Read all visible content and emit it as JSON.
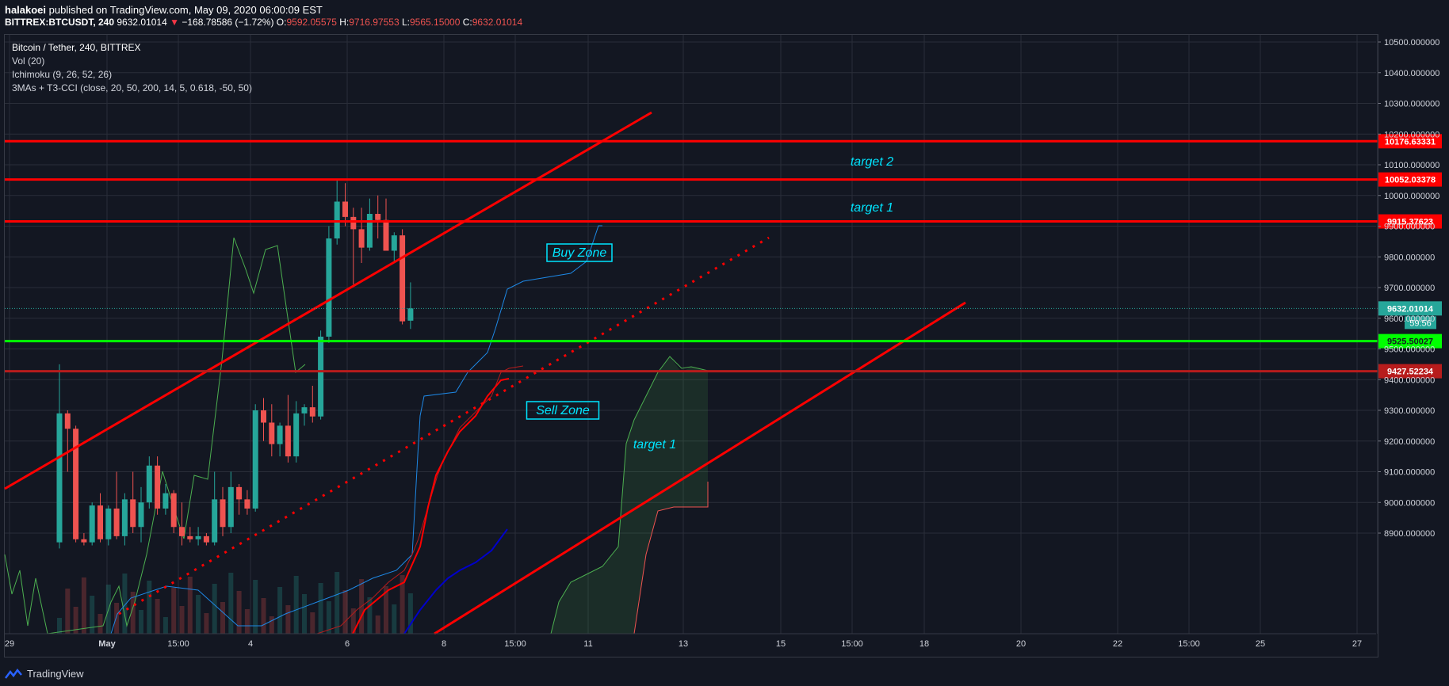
{
  "header": {
    "author": "halakoei",
    "published": "published on TradingView.com, May 09, 2020 06:00:09 EST",
    "symbol": "BITTREX:BTCUSDT, 240",
    "last": "9632.01014",
    "change_arrow": "▼",
    "change": "−168.78586 (−1.72%)",
    "o_label": "O:",
    "o_value": "9592.05575",
    "h_label": "H:",
    "h_value": "9716.97553",
    "l_label": "L:",
    "l_value": "9565.15000",
    "c_label": "C:",
    "c_value": "9632.01014"
  },
  "legend": {
    "title": "Bitcoin / Tether, 240, BITTREX",
    "vol": "Vol (20)",
    "ichimoku": "Ichimoku (9, 26, 52, 26)",
    "mas": "3MAs + T3-CCI (close, 20, 50, 200, 14, 5, 0.618, -50, 50)"
  },
  "footer": {
    "brand": "TradingView"
  },
  "colors": {
    "background": "#131722",
    "up": "#26a69a",
    "down": "#ef5350",
    "hline_red": "#ff0000",
    "hline_green": "#00ff00",
    "annotation": "#00e5ff"
  },
  "chart_data": {
    "type": "candlestick",
    "ylim": [
      8865,
      10560
    ],
    "y_ticks": [
      "10500.000000",
      "10400.000000",
      "10300.000000",
      "10200.000000",
      "10100.000000",
      "10000.000000",
      "9900.000000",
      "9800.000000",
      "9700.000000",
      "9600.000000",
      "9500.000000",
      "9400.000000",
      "9300.000000",
      "9200.000000",
      "9100.000000",
      "9000.000000",
      "8900.000000"
    ],
    "x_ticks": [
      "29",
      "May",
      "15:00",
      "4",
      "6",
      "8",
      "15:00",
      "11",
      "13",
      "15",
      "15:00",
      "18",
      "20",
      "22",
      "15:00",
      "25",
      "27"
    ],
    "candles": [
      {
        "o": 8870,
        "h": 9450,
        "l": 8850,
        "c": 9290
      },
      {
        "o": 9290,
        "h": 9300,
        "l": 9100,
        "c": 9240
      },
      {
        "o": 9240,
        "h": 9250,
        "l": 8870,
        "c": 8880
      },
      {
        "o": 8880,
        "h": 8900,
        "l": 8860,
        "c": 8870
      },
      {
        "o": 8870,
        "h": 9000,
        "l": 8860,
        "c": 8990
      },
      {
        "o": 8990,
        "h": 9030,
        "l": 8870,
        "c": 8880
      },
      {
        "o": 8880,
        "h": 8990,
        "l": 8860,
        "c": 8980
      },
      {
        "o": 8980,
        "h": 9100,
        "l": 8880,
        "c": 8890
      },
      {
        "o": 8890,
        "h": 9030,
        "l": 8860,
        "c": 9010
      },
      {
        "o": 9010,
        "h": 9100,
        "l": 8900,
        "c": 8920
      },
      {
        "o": 8920,
        "h": 9050,
        "l": 8870,
        "c": 9000
      },
      {
        "o": 9000,
        "h": 9150,
        "l": 8980,
        "c": 9120
      },
      {
        "o": 9120,
        "h": 9150,
        "l": 8960,
        "c": 8980
      },
      {
        "o": 8980,
        "h": 9060,
        "l": 8960,
        "c": 9030
      },
      {
        "o": 9030,
        "h": 9040,
        "l": 8900,
        "c": 8920
      },
      {
        "o": 8920,
        "h": 9000,
        "l": 8860,
        "c": 8890
      },
      {
        "o": 8890,
        "h": 8920,
        "l": 8870,
        "c": 8880
      },
      {
        "o": 8880,
        "h": 8920,
        "l": 8860,
        "c": 8890
      },
      {
        "o": 8890,
        "h": 8900,
        "l": 8860,
        "c": 8870
      },
      {
        "o": 8870,
        "h": 9100,
        "l": 8860,
        "c": 9010
      },
      {
        "o": 9010,
        "h": 9050,
        "l": 8890,
        "c": 8920
      },
      {
        "o": 8920,
        "h": 9100,
        "l": 8900,
        "c": 9050
      },
      {
        "o": 9050,
        "h": 9060,
        "l": 8960,
        "c": 9010
      },
      {
        "o": 9010,
        "h": 9040,
        "l": 8960,
        "c": 8980
      },
      {
        "o": 8980,
        "h": 9320,
        "l": 8970,
        "c": 9300
      },
      {
        "o": 9300,
        "h": 9340,
        "l": 9200,
        "c": 9260
      },
      {
        "o": 9260,
        "h": 9320,
        "l": 9150,
        "c": 9190
      },
      {
        "o": 9190,
        "h": 9260,
        "l": 9150,
        "c": 9250
      },
      {
        "o": 9250,
        "h": 9350,
        "l": 9130,
        "c": 9150
      },
      {
        "o": 9150,
        "h": 9330,
        "l": 9130,
        "c": 9290
      },
      {
        "o": 9290,
        "h": 9320,
        "l": 9250,
        "c": 9310
      },
      {
        "o": 9310,
        "h": 9380,
        "l": 9260,
        "c": 9280
      },
      {
        "o": 9280,
        "h": 9560,
        "l": 9270,
        "c": 9540
      },
      {
        "o": 9540,
        "h": 9900,
        "l": 9520,
        "c": 9860
      },
      {
        "o": 9860,
        "h": 10050,
        "l": 9840,
        "c": 9980
      },
      {
        "o": 9980,
        "h": 10040,
        "l": 9900,
        "c": 9930
      },
      {
        "o": 9930,
        "h": 9960,
        "l": 9710,
        "c": 9890
      },
      {
        "o": 9890,
        "h": 9960,
        "l": 9780,
        "c": 9830
      },
      {
        "o": 9830,
        "h": 9990,
        "l": 9820,
        "c": 9940
      },
      {
        "o": 9940,
        "h": 10000,
        "l": 9860,
        "c": 9920
      },
      {
        "o": 9920,
        "h": 9990,
        "l": 9830,
        "c": 9820
      },
      {
        "o": 9820,
        "h": 9880,
        "l": 9780,
        "c": 9870
      },
      {
        "o": 9870,
        "h": 9890,
        "l": 9580,
        "c": 9590
      },
      {
        "o": 9592.05575,
        "h": 9716.97553,
        "l": 9565.15,
        "c": 9632.01014
      }
    ],
    "horizontal_levels": [
      {
        "value": 10176.63331,
        "label": "10176.63331",
        "color": "#ff0000"
      },
      {
        "value": 10052.03378,
        "label": "10052.03378",
        "color": "#ff0000"
      },
      {
        "value": 9915.37623,
        "label": "9915.37623",
        "color": "#ff0000"
      },
      {
        "value": 9525.50027,
        "label": "9525.50027",
        "color": "#00ff00"
      },
      {
        "value": 9427.52234,
        "label": "9427.52234",
        "color": "#b71c1c"
      }
    ],
    "last_price": {
      "value": 9632.01014,
      "label": "9632.01014",
      "countdown": "59:56"
    },
    "annotations": [
      "target 2",
      "target 1",
      "Buy Zone",
      "Sell Zone",
      "target 1"
    ]
  }
}
